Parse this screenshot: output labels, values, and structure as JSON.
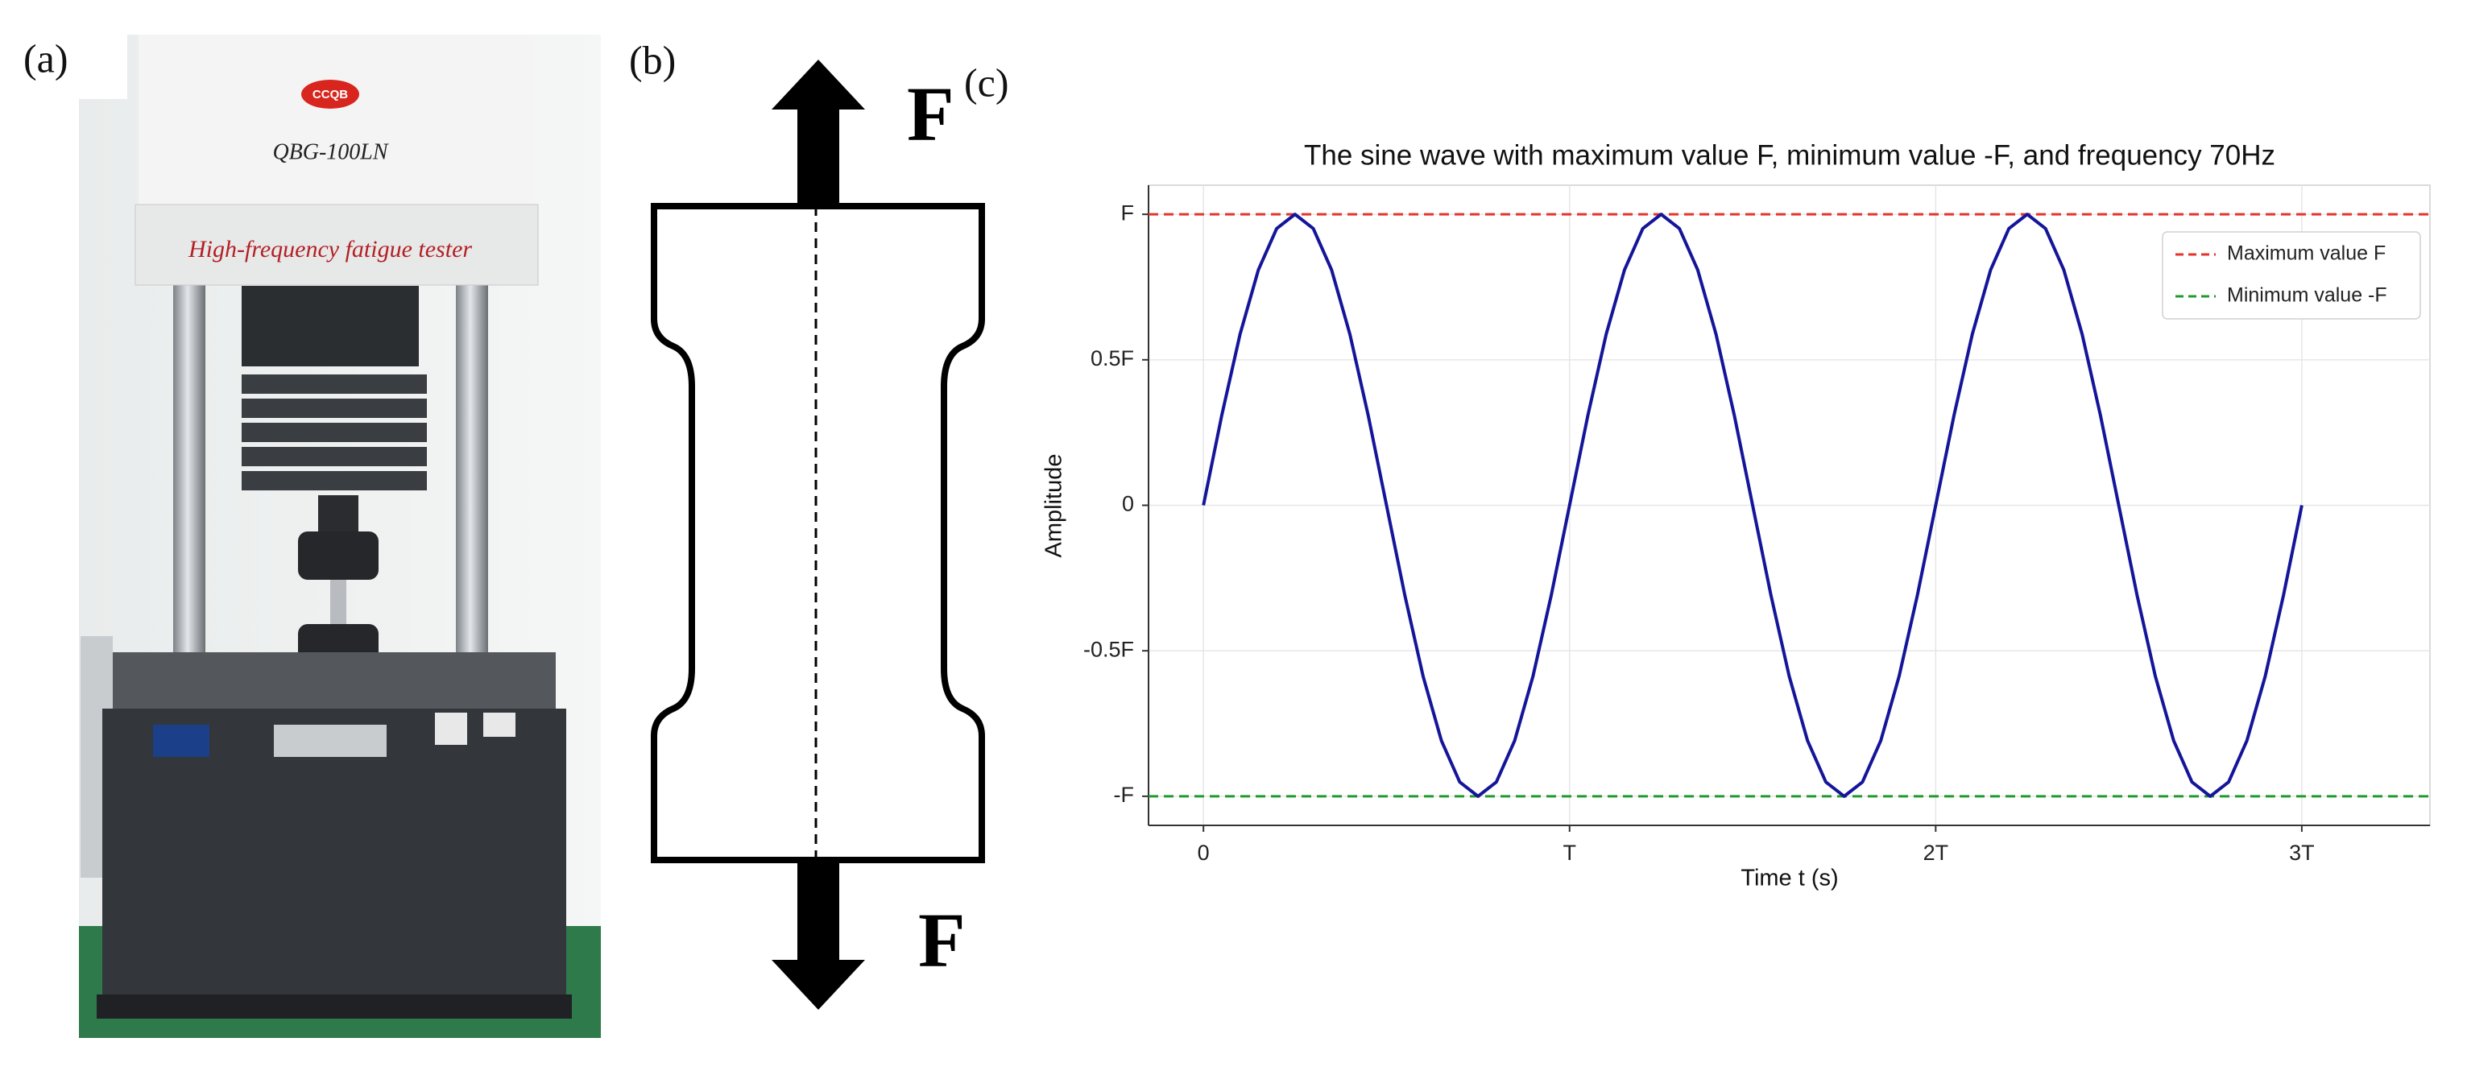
{
  "panels": {
    "a": {
      "label": "(a)",
      "brand": "CCQB",
      "model": "QBG-100LN",
      "caption": "High-frequency fatigue tester"
    },
    "b": {
      "label": "(b)",
      "force_top": "F",
      "force_bottom": "F"
    },
    "c": {
      "label": "(c)"
    }
  },
  "chart_data": {
    "type": "line",
    "title": "The sine wave with maximum value F, minimum value -F, and frequency 70Hz",
    "x_label": "Time t (s)",
    "y_label": "Amplitude",
    "x": [
      0,
      0.05,
      0.1,
      0.15,
      0.2,
      0.25,
      0.3,
      0.35,
      0.4,
      0.45,
      0.5,
      0.55,
      0.6,
      0.65,
      0.7,
      0.75,
      0.8,
      0.85,
      0.9,
      0.95,
      1,
      1.05,
      1.1,
      1.15,
      1.2,
      1.25,
      1.3,
      1.35,
      1.4,
      1.45,
      1.5,
      1.55,
      1.6,
      1.65,
      1.7,
      1.75,
      1.8,
      1.85,
      1.9,
      1.95,
      2,
      2.05,
      2.1,
      2.15,
      2.2,
      2.25,
      2.3,
      2.35,
      2.4,
      2.45,
      2.5,
      2.55,
      2.6,
      2.65,
      2.7,
      2.75,
      2.8,
      2.85,
      2.9,
      2.95,
      3
    ],
    "series": [
      {
        "color": "#15159a",
        "values": [
          0,
          0.309,
          0.588,
          0.809,
          0.951,
          1,
          0.951,
          0.809,
          0.588,
          0.309,
          0,
          -0.309,
          -0.588,
          -0.809,
          -0.951,
          -1,
          -0.951,
          -0.809,
          -0.588,
          -0.309,
          0,
          0.309,
          0.588,
          0.809,
          0.951,
          1,
          0.951,
          0.809,
          0.588,
          0.309,
          0,
          -0.309,
          -0.588,
          -0.809,
          -0.951,
          -1,
          -0.951,
          -0.809,
          -0.588,
          -0.309,
          0,
          0.309,
          0.588,
          0.809,
          0.951,
          1,
          0.951,
          0.809,
          0.588,
          0.309,
          0,
          -0.309,
          -0.588,
          -0.809,
          -0.951,
          -1,
          -0.951,
          -0.809,
          -0.588,
          -0.309,
          0
        ]
      }
    ],
    "hlines": [
      {
        "name": "Maximum value F",
        "value": 1,
        "color": "#e3342b",
        "dashed": true
      },
      {
        "name": "Minimum value -F",
        "value": -1,
        "color": "#1f9a2c",
        "dashed": true
      }
    ],
    "xlim": [
      -0.15,
      3.35
    ],
    "ylim": [
      -1.1,
      1.1
    ],
    "xticks": [
      0,
      {
        "value": 1,
        "label": "T"
      },
      {
        "value": 2,
        "label": "2T"
      },
      {
        "value": 3,
        "label": "3T"
      }
    ],
    "yticks": [
      {
        "value": -1,
        "label": "-F"
      },
      {
        "value": -0.5,
        "label": "-0.5F"
      },
      0,
      {
        "value": 0.5,
        "label": "0.5F"
      },
      {
        "value": 1,
        "label": "F"
      }
    ],
    "grid": true,
    "legend": "upper right"
  }
}
